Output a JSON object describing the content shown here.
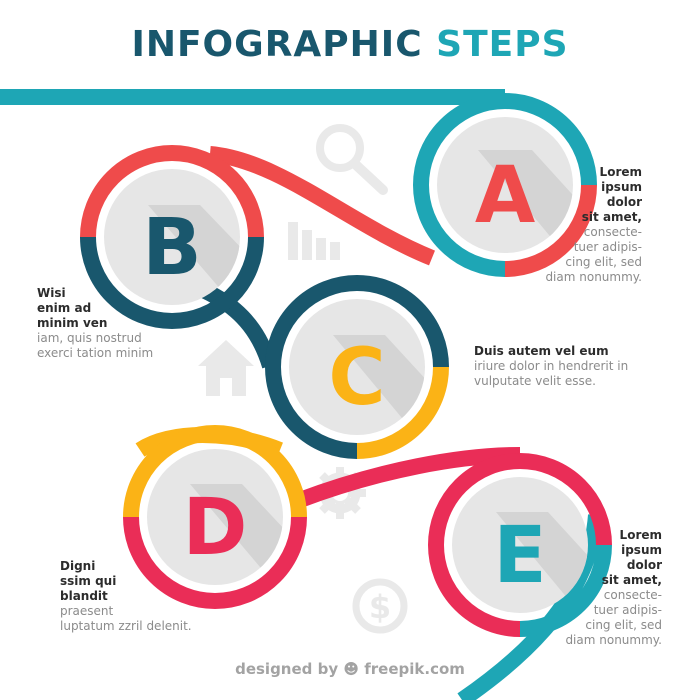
{
  "title": {
    "part1": "INFOGRAPHIC",
    "part2": "STEPS"
  },
  "colors": {
    "teal": "#1ea6b5",
    "red": "#ef4b4b",
    "navy": "#19576d",
    "yellow": "#fbb316",
    "pink": "#ea2d57",
    "circle_fill": "#e6e6e6"
  },
  "steps": [
    {
      "letter": "A",
      "color": "#ef4b4b"
    },
    {
      "letter": "B",
      "color": "#19576d"
    },
    {
      "letter": "C",
      "color": "#fbb316"
    },
    {
      "letter": "D",
      "color": "#ea2d57"
    },
    {
      "letter": "E",
      "color": "#1ea6b5"
    }
  ],
  "texts": {
    "a": {
      "bold": [
        "Lorem",
        "ipsum",
        "dolor",
        "sit amet,"
      ],
      "light": [
        "consecte-",
        "tuer adipis-",
        "cing elit, sed",
        "diam nonummy."
      ]
    },
    "b": {
      "bold": [
        "Wisi",
        "enim ad",
        "minim ven"
      ],
      "light": [
        "iam, quis nostrud",
        "exerci tation minim"
      ]
    },
    "c": {
      "bold": [
        "Duis autem vel eum"
      ],
      "light": [
        "iriure dolor in hendrerit in",
        "vulputate velit esse."
      ]
    },
    "d": {
      "bold": [
        "Digni",
        "ssim qui",
        "blandit"
      ],
      "light": [
        "praesent",
        "luptatum zzril delenit."
      ]
    },
    "e": {
      "bold": [
        "Lorem",
        "ipsum",
        "dolor",
        "sit amet,"
      ],
      "light": [
        "consecte-",
        "tuer adipis-",
        "cing elit, sed",
        "diam nonummy."
      ]
    }
  },
  "background_icons": [
    "magnifier-icon",
    "bar-chart-icon",
    "home-icon",
    "gear-icon",
    "dollar-coin-icon"
  ],
  "credit": {
    "prefix": "designed by",
    "brand": "freepik.com"
  }
}
